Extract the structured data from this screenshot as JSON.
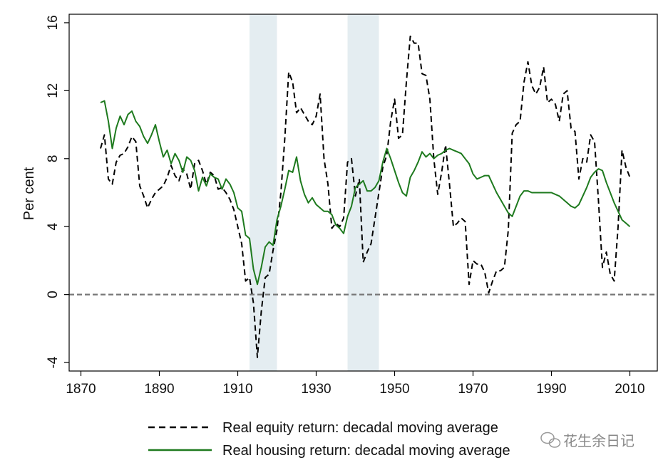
{
  "chart_data": {
    "type": "line",
    "title": "",
    "xlabel": "",
    "ylabel": "Per cent",
    "xlim": [
      1867,
      2017
    ],
    "ylim": [
      -4.5,
      16.5
    ],
    "xticks": [
      "1870",
      "1890",
      "1910",
      "1930",
      "1950",
      "1970",
      "1990",
      "2010"
    ],
    "yticks": [
      "-4",
      "0",
      "4",
      "8",
      "12",
      "16"
    ],
    "reference_line": {
      "y": 0,
      "style": "dashed",
      "color": "#777777"
    },
    "shaded_periods": [
      {
        "start": 1913,
        "end": 1920
      },
      {
        "start": 1938,
        "end": 1946
      }
    ],
    "legend_position": "bottom",
    "series": [
      {
        "name": "Real equity return: decadal moving average",
        "color": "#000000",
        "dash": "dashed",
        "x": [
          1875,
          1876,
          1877,
          1878,
          1879,
          1880,
          1881,
          1882,
          1883,
          1884,
          1885,
          1886,
          1887,
          1888,
          1889,
          1890,
          1891,
          1892,
          1893,
          1894,
          1895,
          1896,
          1897,
          1898,
          1899,
          1900,
          1901,
          1902,
          1903,
          1904,
          1905,
          1906,
          1907,
          1908,
          1909,
          1910,
          1911,
          1912,
          1913,
          1914,
          1915,
          1916,
          1917,
          1918,
          1919,
          1920,
          1921,
          1922,
          1923,
          1924,
          1925,
          1926,
          1927,
          1928,
          1929,
          1930,
          1931,
          1932,
          1933,
          1934,
          1935,
          1936,
          1937,
          1938,
          1939,
          1940,
          1941,
          1942,
          1943,
          1944,
          1945,
          1946,
          1947,
          1948,
          1949,
          1950,
          1951,
          1952,
          1953,
          1954,
          1955,
          1956,
          1957,
          1958,
          1959,
          1960,
          1961,
          1962,
          1963,
          1964,
          1965,
          1966,
          1967,
          1968,
          1969,
          1970,
          1971,
          1972,
          1973,
          1974,
          1975,
          1976,
          1977,
          1978,
          1979,
          1980,
          1981,
          1982,
          1983,
          1984,
          1985,
          1986,
          1987,
          1988,
          1989,
          1990,
          1991,
          1992,
          1993,
          1994,
          1995,
          1996,
          1997,
          1998,
          1999,
          2000,
          2001,
          2002,
          2003,
          2004,
          2005,
          2006,
          2007,
          2008,
          2009,
          2010
        ],
        "values": [
          8.6,
          9.4,
          6.8,
          6.5,
          7.8,
          8.2,
          8.3,
          8.7,
          9.3,
          9.0,
          6.4,
          5.8,
          5.1,
          5.6,
          6.0,
          6.2,
          6.4,
          6.9,
          7.6,
          7.0,
          6.7,
          7.4,
          7.1,
          6.2,
          7.7,
          7.9,
          7.3,
          6.5,
          7.2,
          7.0,
          6.2,
          6.3,
          6.0,
          5.6,
          5.0,
          4.0,
          3.0,
          0.8,
          1.0,
          -0.5,
          -3.7,
          -1.0,
          1.0,
          1.2,
          2.6,
          3.8,
          6.0,
          9.2,
          13.1,
          12.5,
          10.7,
          11.0,
          10.6,
          10.2,
          10.0,
          10.5,
          11.8,
          8.0,
          6.5,
          3.9,
          4.2,
          4.0,
          4.5,
          7.8,
          8.0,
          5.8,
          6.8,
          1.9,
          2.5,
          3.0,
          4.5,
          6.0,
          7.5,
          8.2,
          10.2,
          11.5,
          9.2,
          9.4,
          12.5,
          15.2,
          14.8,
          14.8,
          13.0,
          12.9,
          11.5,
          8.0,
          5.9,
          7.2,
          8.8,
          6.5,
          4.0,
          4.2,
          4.5,
          4.3,
          0.6,
          2.0,
          1.8,
          1.8,
          1.3,
          0.1,
          0.8,
          1.4,
          1.4,
          1.6,
          3.8,
          9.5,
          10.0,
          10.2,
          12.5,
          13.7,
          12.3,
          11.8,
          12.2,
          13.4,
          11.3,
          11.5,
          11.2,
          10.2,
          11.8,
          12.0,
          9.8,
          9.6,
          6.8,
          8.0,
          7.8,
          9.4,
          9.0,
          5.5,
          1.6,
          2.5,
          1.2,
          0.8,
          4.0,
          8.5,
          7.5,
          6.9
        ]
      },
      {
        "name": "Real housing return: decadal moving average",
        "color": "#1e7a1e",
        "dash": "solid",
        "x": [
          1875,
          1876,
          1877,
          1878,
          1879,
          1880,
          1881,
          1882,
          1883,
          1884,
          1885,
          1886,
          1887,
          1888,
          1889,
          1890,
          1891,
          1892,
          1893,
          1894,
          1895,
          1896,
          1897,
          1898,
          1899,
          1900,
          1901,
          1902,
          1903,
          1904,
          1905,
          1906,
          1907,
          1908,
          1909,
          1910,
          1911,
          1912,
          1913,
          1914,
          1915,
          1916,
          1917,
          1918,
          1919,
          1920,
          1921,
          1922,
          1923,
          1924,
          1925,
          1926,
          1927,
          1928,
          1929,
          1930,
          1931,
          1932,
          1933,
          1934,
          1935,
          1936,
          1937,
          1938,
          1939,
          1940,
          1941,
          1942,
          1943,
          1944,
          1945,
          1946,
          1947,
          1948,
          1949,
          1950,
          1951,
          1952,
          1953,
          1954,
          1955,
          1956,
          1957,
          1958,
          1959,
          1960,
          1961,
          1962,
          1963,
          1964,
          1965,
          1966,
          1967,
          1968,
          1969,
          1970,
          1971,
          1972,
          1973,
          1974,
          1975,
          1976,
          1977,
          1978,
          1979,
          1980,
          1981,
          1982,
          1983,
          1984,
          1985,
          1986,
          1987,
          1988,
          1989,
          1990,
          1991,
          1992,
          1993,
          1994,
          1995,
          1996,
          1997,
          1998,
          1999,
          2000,
          2001,
          2002,
          2003,
          2004,
          2005,
          2006,
          2007,
          2008,
          2009,
          2010
        ],
        "values": [
          11.3,
          11.4,
          10.2,
          8.6,
          9.8,
          10.5,
          10.0,
          10.6,
          10.8,
          10.2,
          9.9,
          9.3,
          8.9,
          9.4,
          10.0,
          9.0,
          8.1,
          8.5,
          7.7,
          8.3,
          7.9,
          7.2,
          8.1,
          7.9,
          7.3,
          6.1,
          6.9,
          6.4,
          7.1,
          6.9,
          6.8,
          6.2,
          6.8,
          6.5,
          6.0,
          5.1,
          4.9,
          3.5,
          3.3,
          1.5,
          0.6,
          1.6,
          2.8,
          3.1,
          2.9,
          4.4,
          5.2,
          6.2,
          7.3,
          7.2,
          8.1,
          6.7,
          5.9,
          5.4,
          5.7,
          5.3,
          5.1,
          4.9,
          4.9,
          4.7,
          4.1,
          3.9,
          3.6,
          4.6,
          5.2,
          6.3,
          6.5,
          6.7,
          6.1,
          6.1,
          6.3,
          6.7,
          7.8,
          8.6,
          8.0,
          7.3,
          6.6,
          6.0,
          5.8,
          6.9,
          7.3,
          7.8,
          8.4,
          8.1,
          8.3,
          8.0,
          8.2,
          8.3,
          8.5,
          8.6,
          8.5,
          8.4,
          8.3,
          8.0,
          7.7,
          7.1,
          6.8,
          6.9,
          7.0,
          7.0,
          6.5,
          6.0,
          5.6,
          5.2,
          4.8,
          4.6,
          5.2,
          5.8,
          6.1,
          6.1,
          6.0,
          6.0,
          6.0,
          6.0,
          6.0,
          6.0,
          5.9,
          5.8,
          5.6,
          5.4,
          5.2,
          5.1,
          5.3,
          5.8,
          6.3,
          6.9,
          7.2,
          7.4,
          7.3,
          6.6,
          6.0,
          5.4,
          4.9,
          4.4,
          4.2,
          4.0
        ]
      }
    ]
  },
  "watermark": {
    "text": "花生余日记",
    "icon": "wechat-icon"
  }
}
